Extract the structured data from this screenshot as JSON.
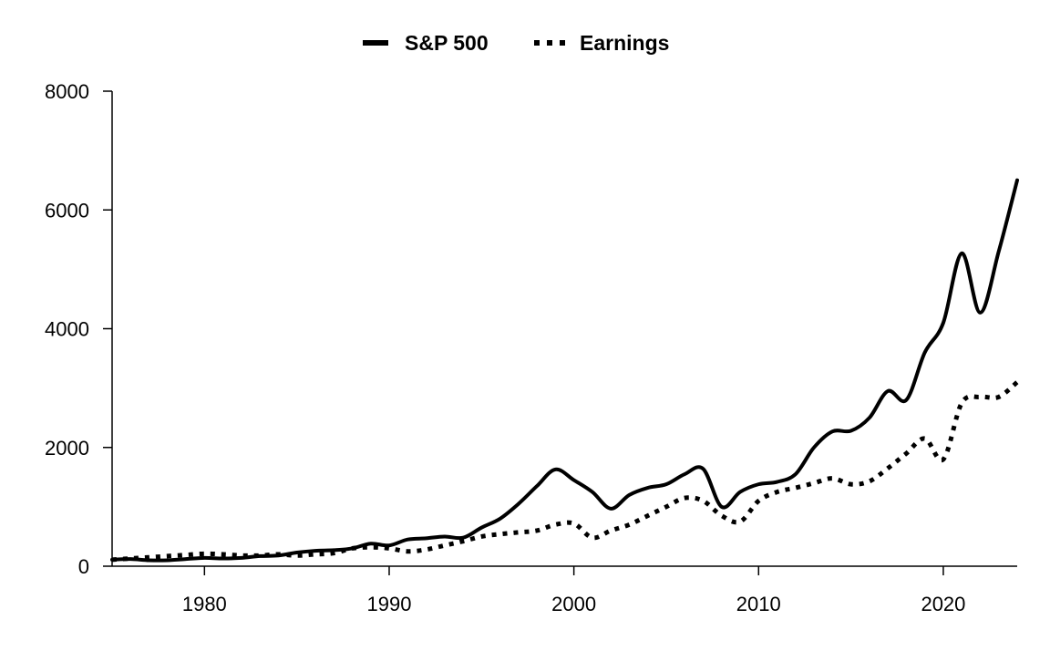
{
  "chart_data": {
    "type": "line",
    "title": "",
    "xlabel": "",
    "ylabel": "",
    "xlim": [
      1975,
      2024
    ],
    "ylim": [
      0,
      8000
    ],
    "xticks": [
      1980,
      1990,
      2000,
      2010,
      2020
    ],
    "yticks": [
      0,
      2000,
      4000,
      6000,
      8000
    ],
    "grid": false,
    "legend": {
      "position": "top-center",
      "entries": [
        {
          "label": "S&P 500",
          "style": "solid"
        },
        {
          "label": "Earnings",
          "style": "dotted"
        }
      ]
    },
    "series": [
      {
        "name": "S&P 500",
        "style": "solid",
        "color": "#000000",
        "x": [
          1975,
          1976,
          1977,
          1978,
          1979,
          1980,
          1981,
          1982,
          1983,
          1984,
          1985,
          1986,
          1987,
          1988,
          1989,
          1990,
          1991,
          1992,
          1993,
          1994,
          1995,
          1996,
          1997,
          1998,
          1999,
          2000,
          2001,
          2002,
          2003,
          2004,
          2005,
          2006,
          2007,
          2008,
          2009,
          2010,
          2011,
          2012,
          2013,
          2014,
          2015,
          2016,
          2017,
          2018,
          2019,
          2020,
          2021,
          2022,
          2023,
          2024
        ],
        "y": [
          110,
          120,
          100,
          100,
          120,
          140,
          130,
          140,
          170,
          180,
          230,
          260,
          270,
          300,
          380,
          350,
          450,
          470,
          500,
          480,
          650,
          800,
          1050,
          1350,
          1630,
          1450,
          1250,
          970,
          1200,
          1320,
          1380,
          1550,
          1640,
          1000,
          1250,
          1380,
          1420,
          1550,
          2000,
          2270,
          2280,
          2500,
          2950,
          2800,
          3600,
          4100,
          5270,
          4270,
          5300,
          6500
        ]
      },
      {
        "name": "Earnings",
        "style": "dotted",
        "color": "#000000",
        "x": [
          1975,
          1976,
          1977,
          1978,
          1979,
          1980,
          1981,
          1982,
          1983,
          1984,
          1985,
          1986,
          1987,
          1988,
          1989,
          1990,
          1991,
          1992,
          1993,
          1994,
          1995,
          1996,
          1997,
          1998,
          1999,
          2000,
          2001,
          2002,
          2003,
          2004,
          2005,
          2006,
          2007,
          2008,
          2009,
          2010,
          2011,
          2012,
          2013,
          2014,
          2015,
          2016,
          2017,
          2018,
          2019,
          2020,
          2021,
          2022,
          2023,
          2024
        ],
        "y": [
          110,
          130,
          150,
          170,
          190,
          210,
          200,
          180,
          180,
          200,
          180,
          200,
          220,
          300,
          320,
          300,
          250,
          280,
          350,
          420,
          500,
          540,
          570,
          600,
          700,
          720,
          480,
          600,
          700,
          850,
          1000,
          1150,
          1100,
          850,
          750,
          1100,
          1250,
          1320,
          1400,
          1480,
          1380,
          1430,
          1650,
          1900,
          2150,
          1800,
          2750,
          2850,
          2850,
          3100
        ]
      }
    ]
  }
}
